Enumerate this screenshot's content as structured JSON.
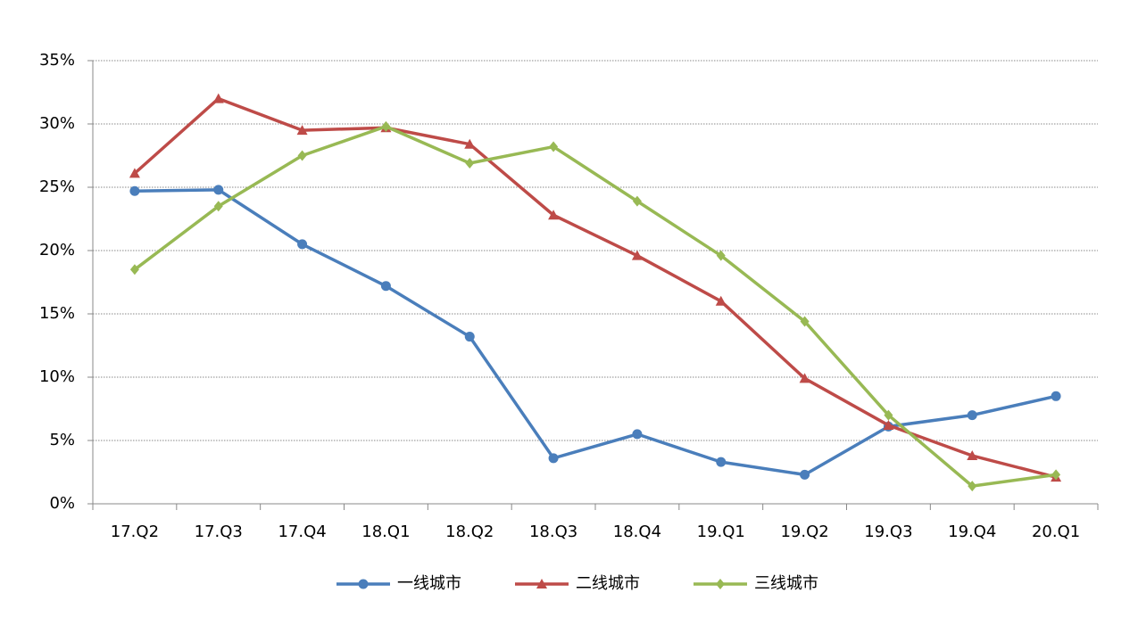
{
  "chart_data": {
    "type": "line",
    "categories": [
      "17.Q2",
      "17.Q3",
      "17.Q4",
      "18.Q1",
      "18.Q2",
      "18.Q3",
      "18.Q4",
      "19.Q1",
      "19.Q2",
      "19.Q3",
      "19.Q4",
      "20.Q1"
    ],
    "series": [
      {
        "name": "一线城市",
        "color": "#4a7ebb",
        "marker": "circle",
        "values": [
          24.7,
          24.8,
          20.5,
          17.2,
          13.2,
          3.6,
          5.5,
          3.3,
          2.3,
          6.1,
          7.0,
          8.5
        ]
      },
      {
        "name": "二线城市",
        "color": "#be4b48",
        "marker": "triangle",
        "values": [
          26.1,
          32.0,
          29.5,
          29.7,
          28.4,
          22.8,
          19.6,
          16.0,
          9.9,
          6.2,
          3.8,
          2.1
        ]
      },
      {
        "name": "三线城市",
        "color": "#98b954",
        "marker": "diamond",
        "values": [
          18.5,
          23.5,
          27.5,
          29.8,
          26.9,
          28.2,
          23.9,
          19.6,
          14.4,
          7.0,
          1.4,
          2.3
        ]
      }
    ],
    "ylim": [
      0,
      35
    ],
    "yticks": [
      {
        "value": 0,
        "label": "0%"
      },
      {
        "value": 5,
        "label": "5%"
      },
      {
        "value": 10,
        "label": "10%"
      },
      {
        "value": 15,
        "label": "15%"
      },
      {
        "value": 20,
        "label": "20%"
      },
      {
        "value": 25,
        "label": "25%"
      },
      {
        "value": 30,
        "label": "30%"
      },
      {
        "value": 35,
        "label": "35%"
      }
    ],
    "grid": true,
    "legend": "bottom"
  }
}
